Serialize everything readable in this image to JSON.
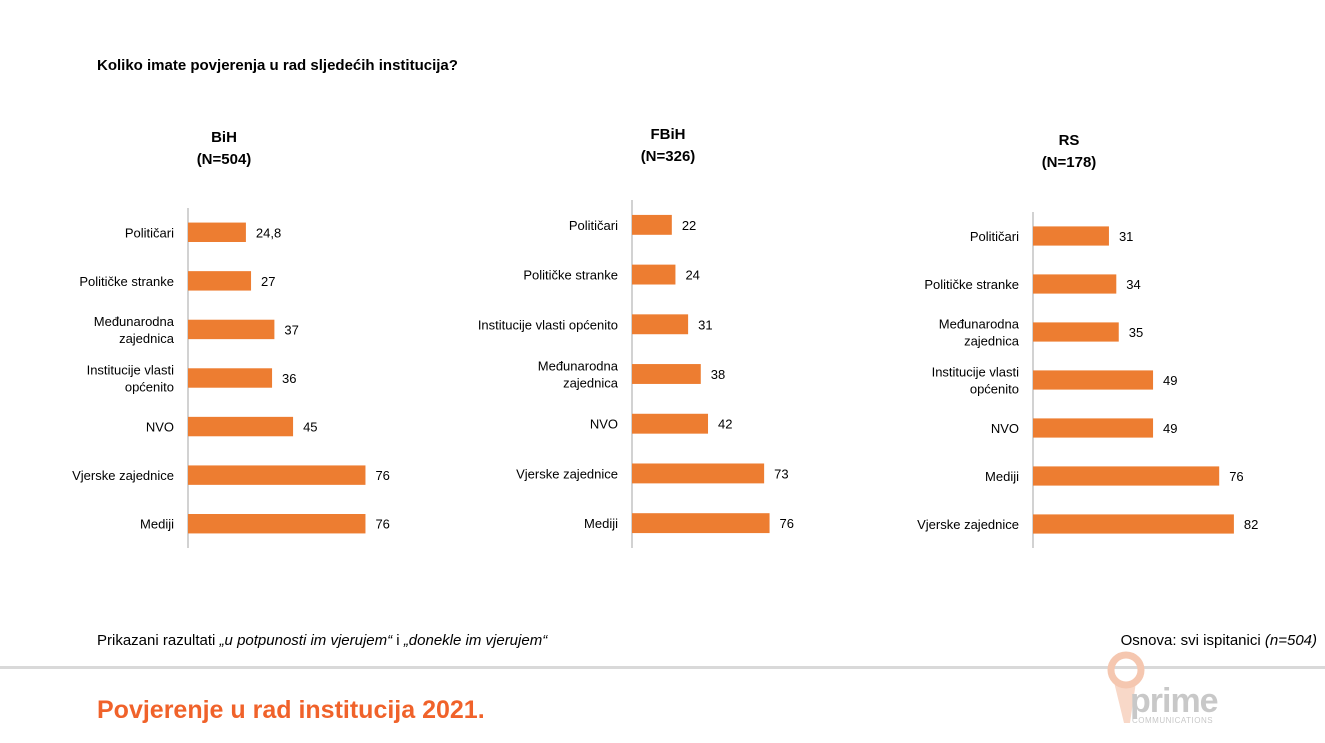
{
  "question": "Koliko imate povjerenja u rad sljedećih institucija?",
  "chart_data": [
    {
      "type": "bar",
      "orientation": "horizontal",
      "title_lines": [
        "BiH",
        "(N=504)"
      ],
      "categories": [
        [
          "Političari"
        ],
        [
          "Političke stranke"
        ],
        [
          "Međunarodna",
          "zajednica"
        ],
        [
          "Institucije vlasti",
          "općenito"
        ],
        [
          "NVO"
        ],
        [
          "Vjerske zajednice"
        ],
        [
          "Mediji"
        ]
      ],
      "values": [
        24.8,
        27,
        37,
        36,
        45,
        76,
        76
      ],
      "value_labels": [
        "24,8",
        "27",
        "37",
        "36",
        "45",
        "76",
        "76"
      ],
      "color": "#ed7d31"
    },
    {
      "type": "bar",
      "orientation": "horizontal",
      "title_lines": [
        "FBiH",
        "(N=326)"
      ],
      "categories": [
        [
          "Političari"
        ],
        [
          "Političke stranke"
        ],
        [
          "Institucije vlasti općenito"
        ],
        [
          "Međunarodna",
          "zajednica"
        ],
        [
          "NVO"
        ],
        [
          "Vjerske zajednice"
        ],
        [
          "Mediji"
        ]
      ],
      "values": [
        22,
        24,
        31,
        38,
        42,
        73,
        76
      ],
      "value_labels": [
        "22",
        "24",
        "31",
        "38",
        "42",
        "73",
        "76"
      ],
      "color": "#ed7d31"
    },
    {
      "type": "bar",
      "orientation": "horizontal",
      "title_lines": [
        "RS",
        "(N=178)"
      ],
      "categories": [
        [
          "Političari"
        ],
        [
          "Političke stranke"
        ],
        [
          "Međunarodna",
          "zajednica"
        ],
        [
          "Institucije vlasti",
          "općenito"
        ],
        [
          "NVO"
        ],
        [
          "Mediji"
        ],
        [
          "Vjerske zajednice"
        ]
      ],
      "values": [
        31,
        34,
        35,
        49,
        49,
        76,
        82
      ],
      "value_labels": [
        "31",
        "34",
        "35",
        "49",
        "49",
        "76",
        "82"
      ],
      "color": "#ed7d31"
    }
  ],
  "footnote_left": {
    "prefix": "Prikazani razultati ",
    "q1": "„u potpunosti im vjerujem“",
    "mid": " i ",
    "q2": "„donekle im vjerujem“"
  },
  "footnote_right": {
    "prefix": "Osnova: svi ispitanici ",
    "n": "(n=504)"
  },
  "slide_title": "Povjerenje u rad institucija 2021.",
  "logo": {
    "name": "prime",
    "sub": "COMMUNICATIONS",
    "icon": "pin-logo-icon"
  }
}
